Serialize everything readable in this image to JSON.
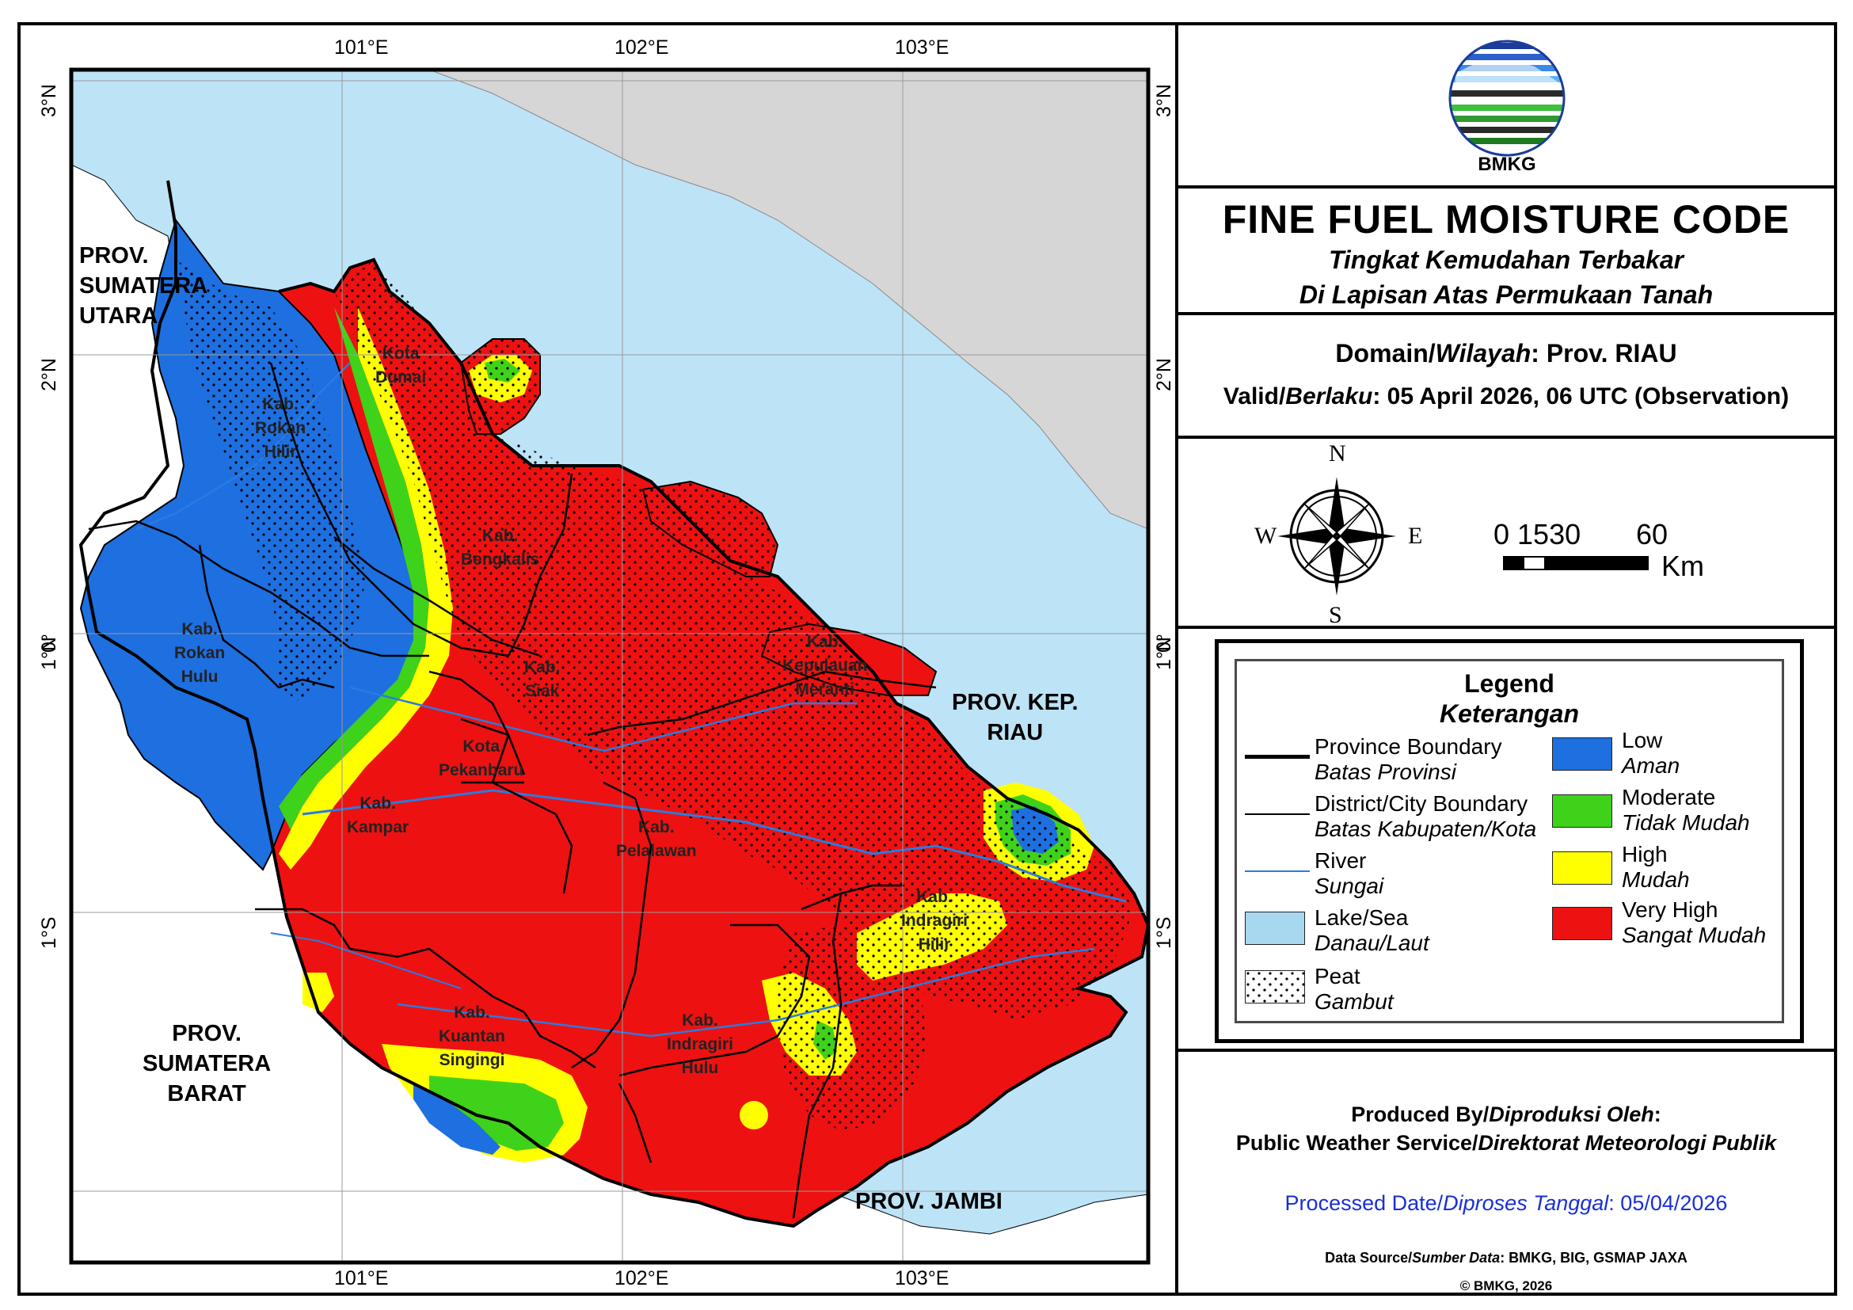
{
  "title": "FINE FUEL MOISTURE CODE",
  "subtitle_1": "Tingkat Kemudahan Terbakar",
  "subtitle_2": "Di Lapisan Atas Permukaan Tanah",
  "domain_label_en": "Domain/",
  "domain_label_id": "Wilayah",
  "domain_value": ": Prov. RIAU",
  "valid_label_en": "Valid/",
  "valid_label_id": "Berlaku",
  "valid_value": ": 05 April 2026, 06 UTC (Observation)",
  "logo_text": "BMKG",
  "compass": {
    "n": "N",
    "s": "S",
    "e": "E",
    "w": "W"
  },
  "scale": {
    "labels": "0 1530",
    "end": "60",
    "unit": "Km"
  },
  "axes": {
    "lon_ticks": [
      "101°E",
      "102°E",
      "103°E"
    ],
    "lat_ticks": [
      "3°N",
      "2°N",
      "1°N",
      "0°",
      "1°S"
    ]
  },
  "legend": {
    "title": "Legend",
    "title_id": "Keterangan",
    "lines": [
      {
        "en": "Province Boundary",
        "id": "Batas Provinsi"
      },
      {
        "en": "District/City Boundary",
        "id": "Batas Kabupaten/Kota"
      },
      {
        "en": "River",
        "id": "Sungai"
      },
      {
        "en": "Lake/Sea",
        "id": "Danau/Laut"
      },
      {
        "en": "Peat",
        "id": "Gambut"
      }
    ],
    "classes": [
      {
        "en": "Low",
        "id": "Aman",
        "color": "#1e6fe0"
      },
      {
        "en": "Moderate",
        "id": "Tidak Mudah",
        "color": "#3fd21a"
      },
      {
        "en": "High",
        "id": "Mudah",
        "color": "#ffff00"
      },
      {
        "en": "Very High",
        "id": "Sangat Mudah",
        "color": "#ee1111"
      }
    ]
  },
  "producer_label_en": "Produced By/",
  "producer_label_id": "Diproduksi Oleh",
  "producer_colon": ":",
  "producer_value_en": "Public Weather Service/",
  "producer_value_id": "Direktorat Meteorologi Publik",
  "processed_en": "Processed Date/",
  "processed_id": "Diproses Tanggal",
  "processed_value": ": 05/04/2026",
  "source_en": "Data Source/",
  "source_id": "Sumber Data",
  "source_value": ": BMKG, BIG, GSMAP JAXA",
  "copyright": "© BMKG, 2026",
  "provinces": [
    {
      "line1": "PROV.",
      "line2": "SUMATERA",
      "line3": "UTARA"
    },
    {
      "line1": "PROV.",
      "line2": "SUMATERA",
      "line3": "BARAT"
    },
    {
      "line1": "PROV. JAMBI"
    },
    {
      "line1": "PROV. KEP.",
      "line2": "RIAU"
    }
  ],
  "districts": [
    {
      "line1": "Kota",
      "line2": "Dumai"
    },
    {
      "line1": "Kab.",
      "line2": "Rokan",
      "line3": "Hilir"
    },
    {
      "line1": "Kab.",
      "line2": "Rokan",
      "line3": "Hulu"
    },
    {
      "line1": "Kab.",
      "line2": "Bengkalis"
    },
    {
      "line1": "Kab.",
      "line2": "Siak"
    },
    {
      "line1": "Kab.",
      "line2": "Kepulauan",
      "line3": "Meranti"
    },
    {
      "line1": "Kota",
      "line2": "Pekanbaru"
    },
    {
      "line1": "Kab.",
      "line2": "Kampar"
    },
    {
      "line1": "Kab.",
      "line2": "Pelalawan"
    },
    {
      "line1": "Kab.",
      "line2": "Indragiri",
      "line3": "Hilir"
    },
    {
      "line1": "Kab.",
      "line2": "Kuantan",
      "line3": "Singingi"
    },
    {
      "line1": "Kab.",
      "line2": "Indragiri",
      "line3": "Hulu"
    }
  ],
  "colors": {
    "sea": "#bde3f6",
    "land_outside": "#d6d6d6",
    "low": "#1e6fe0",
    "moderate": "#3fd21a",
    "high": "#ffff00",
    "very_high": "#ee1111",
    "river": "#2a7be0",
    "processed_text": "#1a2fd4"
  }
}
